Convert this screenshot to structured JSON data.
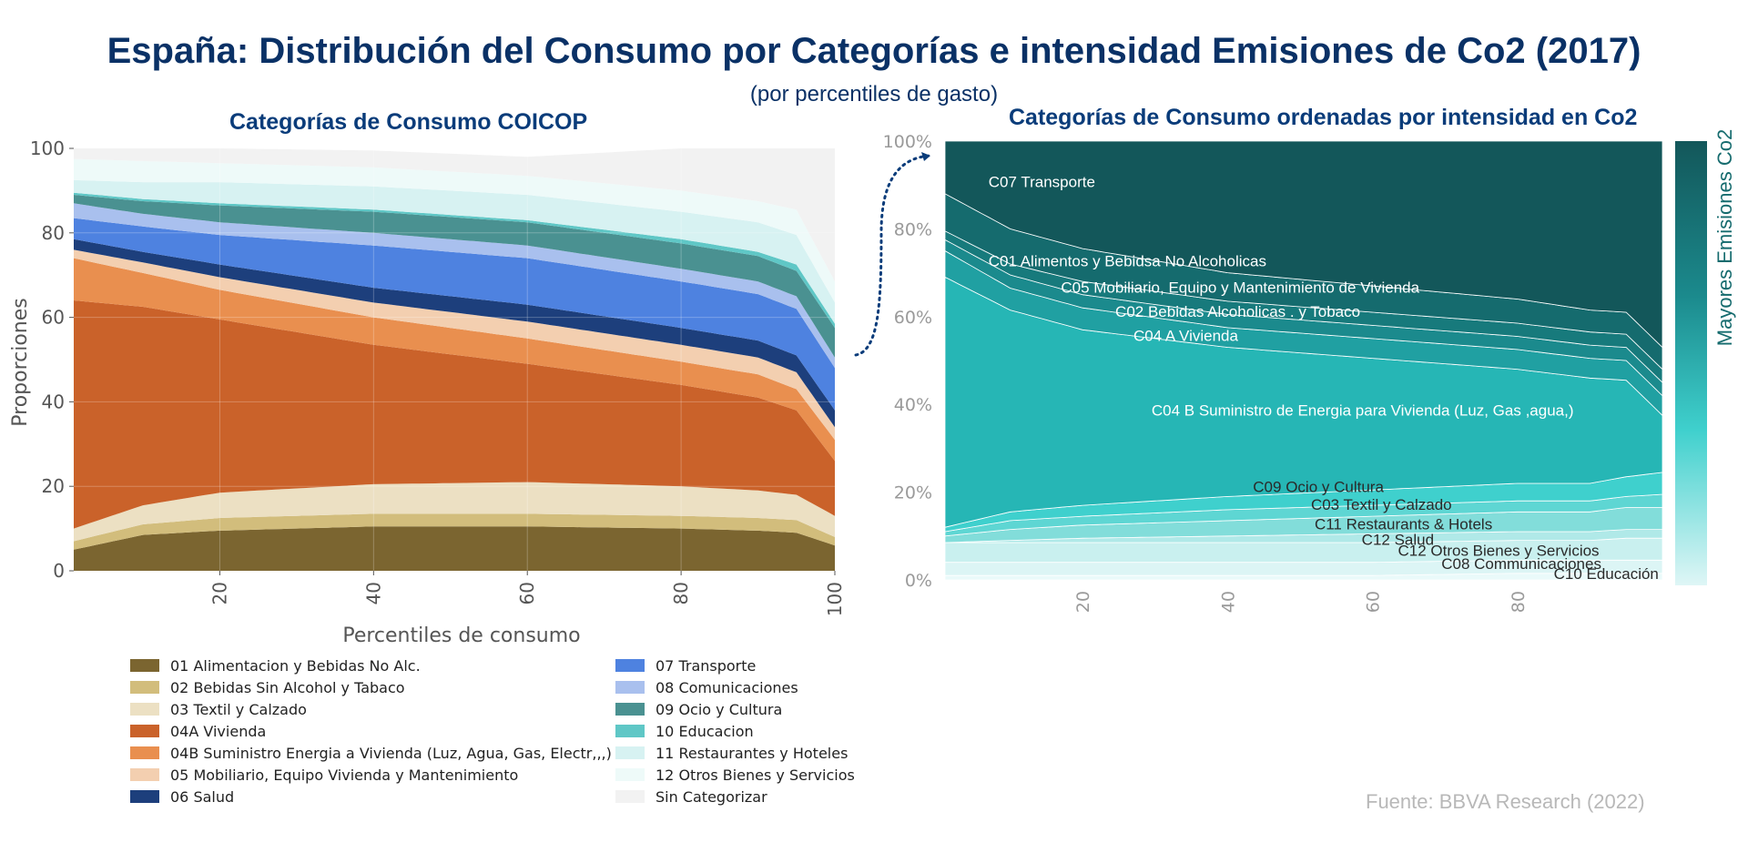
{
  "header": {
    "title": "España: Distribución del Consumo por Categorías e intensidad Emisiones de Co2 (2017)",
    "subtitle": "(por percentiles de gasto)"
  },
  "source": "Fuente: BBVA Research (2022)",
  "chart_data": [
    {
      "type": "area",
      "stacked": true,
      "title": "Categorías de Consumo COICOP",
      "xlabel": "Percentiles de consumo",
      "ylabel": "Proporciones",
      "xlim": [
        1,
        100
      ],
      "ylim": [
        0,
        100
      ],
      "x_ticks": [
        "20",
        "40",
        "60",
        "80",
        "100"
      ],
      "y_ticks": [
        "0",
        "20",
        "40",
        "60",
        "80",
        "100"
      ],
      "grid": true,
      "legend_position": "bottom",
      "x": [
        1,
        10,
        20,
        40,
        60,
        80,
        90,
        95,
        100
      ],
      "series": [
        {
          "name": "01 Alimentacion y Bebidas No Alc.",
          "color": "#7b6530",
          "values": [
            5,
            8.5,
            9.5,
            10.5,
            10.5,
            10,
            9.5,
            9,
            6
          ]
        },
        {
          "name": "02 Bebidas Sin Alcohol y Tabaco",
          "color": "#d2bd7c",
          "values": [
            2,
            2.5,
            3,
            3,
            3,
            3,
            3,
            3,
            2
          ]
        },
        {
          "name": "03 Textil y Calzado",
          "color": "#ece0c3",
          "values": [
            3,
            4.5,
            6,
            7,
            7.5,
            7,
            6.5,
            6,
            5
          ]
        },
        {
          "name": "04A Vivienda",
          "color": "#ca622a",
          "values": [
            54,
            47,
            41,
            33,
            28,
            24,
            22,
            20,
            13
          ]
        },
        {
          "name": "04B Suministro Energia a Vivienda (Luz, Agua, Gas, Electr,,,)",
          "color": "#e98f4f",
          "values": [
            10,
            8,
            7,
            6.5,
            6,
            5.5,
            5.5,
            5,
            5
          ]
        },
        {
          "name": "05 Mobiliario, Equipo Vivienda y Mantenimiento",
          "color": "#f3cfb0",
          "values": [
            2,
            2.5,
            3,
            3.5,
            4,
            4,
            4,
            4,
            3
          ]
        },
        {
          "name": "06 Salud",
          "color": "#1d3f7c",
          "values": [
            2.5,
            2.5,
            3,
            3.5,
            4,
            4,
            4,
            4,
            4
          ]
        },
        {
          "name": "07 Transporte",
          "color": "#4e82e0",
          "values": [
            5,
            6,
            7,
            10,
            11,
            11,
            11,
            11,
            10
          ]
        },
        {
          "name": "08 Comunicaciones",
          "color": "#a9c0ee",
          "values": [
            3.5,
            3,
            3,
            3,
            3,
            3,
            3,
            3,
            2.5
          ]
        },
        {
          "name": "09 Ocio y Cultura",
          "color": "#4a9191",
          "values": [
            2,
            3,
            4,
            5,
            5.5,
            6,
            6,
            6,
            7
          ]
        },
        {
          "name": "10 Educacion",
          "color": "#5fc7c6",
          "values": [
            0.5,
            0.5,
            0.5,
            0.5,
            0.5,
            1,
            1,
            1.5,
            1
          ]
        },
        {
          "name": "11 Restaurantes y Hoteles",
          "color": "#d7f2f2",
          "values": [
            3,
            4,
            5,
            5.5,
            6,
            6.5,
            7,
            7,
            5
          ]
        },
        {
          "name": "12 Otros Bienes y Servicios",
          "color": "#eefaf9",
          "values": [
            5,
            5,
            4.5,
            4.5,
            4.5,
            5,
            5,
            6,
            5
          ]
        },
        {
          "name": "Sin Categorizar",
          "color": "#f2f2f2",
          "values": [
            2.5,
            3,
            3.5,
            4,
            4.5,
            10,
            12.5,
            14.5,
            31.5
          ]
        }
      ]
    },
    {
      "type": "area",
      "stacked": true,
      "title": "Categorías de Consumo ordenadas por intensidad en Co2",
      "colorbar_label": "Mayores  Emisiones Co2",
      "xlim": [
        1,
        100
      ],
      "ylim": [
        0,
        100
      ],
      "x_ticks": [
        "20",
        "40",
        "60",
        "80"
      ],
      "y_ticks": [
        "0%",
        "20%",
        "40%",
        "60%",
        "80%",
        "100%"
      ],
      "x": [
        1,
        10,
        20,
        40,
        60,
        80,
        90,
        95,
        100
      ],
      "series": [
        {
          "name": "C10 Educación",
          "color": "#eafafa",
          "values": [
            1,
            1,
            1,
            1,
            1,
            1.5,
            1.5,
            1.5,
            1.5
          ]
        },
        {
          "name": "C08 Communicaciones",
          "color": "#dcf5f5",
          "values": [
            3,
            3,
            3,
            3,
            3,
            3,
            3,
            3,
            3
          ]
        },
        {
          "name": "C12 Otros Bienes y Servicios",
          "color": "#c9f0ef",
          "values": [
            4.5,
            4.5,
            4.5,
            4.5,
            4.5,
            4.5,
            4.5,
            5,
            5
          ]
        },
        {
          "name": "C12 Salud",
          "color": "#b0e9e8",
          "values": [
            0,
            0.5,
            1,
            1.5,
            2,
            2,
            2,
            2,
            2
          ]
        },
        {
          "name": "C11 Restaurants & Hotels",
          "color": "#82ddda",
          "values": [
            1.5,
            2.5,
            3,
            3.5,
            4,
            4.5,
            4.5,
            5,
            5
          ]
        },
        {
          "name": "C03 Textil y Calzado",
          "color": "#5ed6d3",
          "values": [
            1,
            2,
            2,
            2.5,
            2.5,
            2.5,
            2.5,
            2.5,
            3
          ]
        },
        {
          "name": "C09 Ocio y Cultura",
          "color": "#3fd0cd",
          "values": [
            1,
            2,
            2.5,
            3,
            3.5,
            4,
            4,
            4.5,
            5
          ]
        },
        {
          "name": "C04 B Suministro de Energia para Vivienda  (Luz, Gas ,agua,)",
          "color": "#26b6b5",
          "values": [
            57,
            46,
            40,
            34,
            30,
            26,
            24,
            22,
            13
          ]
        },
        {
          "name": "C04 A Vivienda",
          "color": "#20a0a2",
          "values": [
            6,
            5,
            5,
            4.5,
            4.5,
            4.5,
            4.5,
            4.5,
            4.5
          ]
        },
        {
          "name": "C02 Bebidas Alcoholicas . y Tobaco",
          "color": "#1b8a8d",
          "values": [
            2.5,
            3,
            3,
            3,
            3,
            3,
            3,
            3,
            3
          ]
        },
        {
          "name": "C05 Mobiliario, Equipo y Mantenimiento de Vivienda",
          "color": "#177a7c",
          "values": [
            2,
            2.5,
            3,
            3,
            3,
            3,
            3,
            3,
            3
          ]
        },
        {
          "name": "C01 Alimentos y Bebidsa No Alcoholicas",
          "color": "#156b6e",
          "values": [
            8.5,
            8,
            7.5,
            6.5,
            6,
            5.5,
            5,
            5,
            5
          ]
        },
        {
          "name": "C07 Transporte",
          "color": "#13575a",
          "values": [
            12,
            20,
            25,
            33,
            36,
            40,
            43.5,
            44.5,
            47
          ]
        }
      ],
      "annotations": [
        "C07 Transporte",
        "C01 Alimentos y Bebidsa No Alcoholicas",
        "C05 Mobiliario, Equipo y Mantenimiento de Vivienda",
        "C02 Bebidas Alcoholicas . y Tobaco",
        "C04 A Vivienda",
        "C04 B Suministro de Energia para Vivienda  (Luz, Gas ,agua,)",
        "C09 Ocio y Cultura",
        "C03 Textil y Calzado",
        "C11 Restaurants & Hotels",
        "C12 Salud",
        "C12 Otros Bienes y Servicios",
        "C08 Communicaciones",
        "C10 Educación"
      ]
    }
  ]
}
